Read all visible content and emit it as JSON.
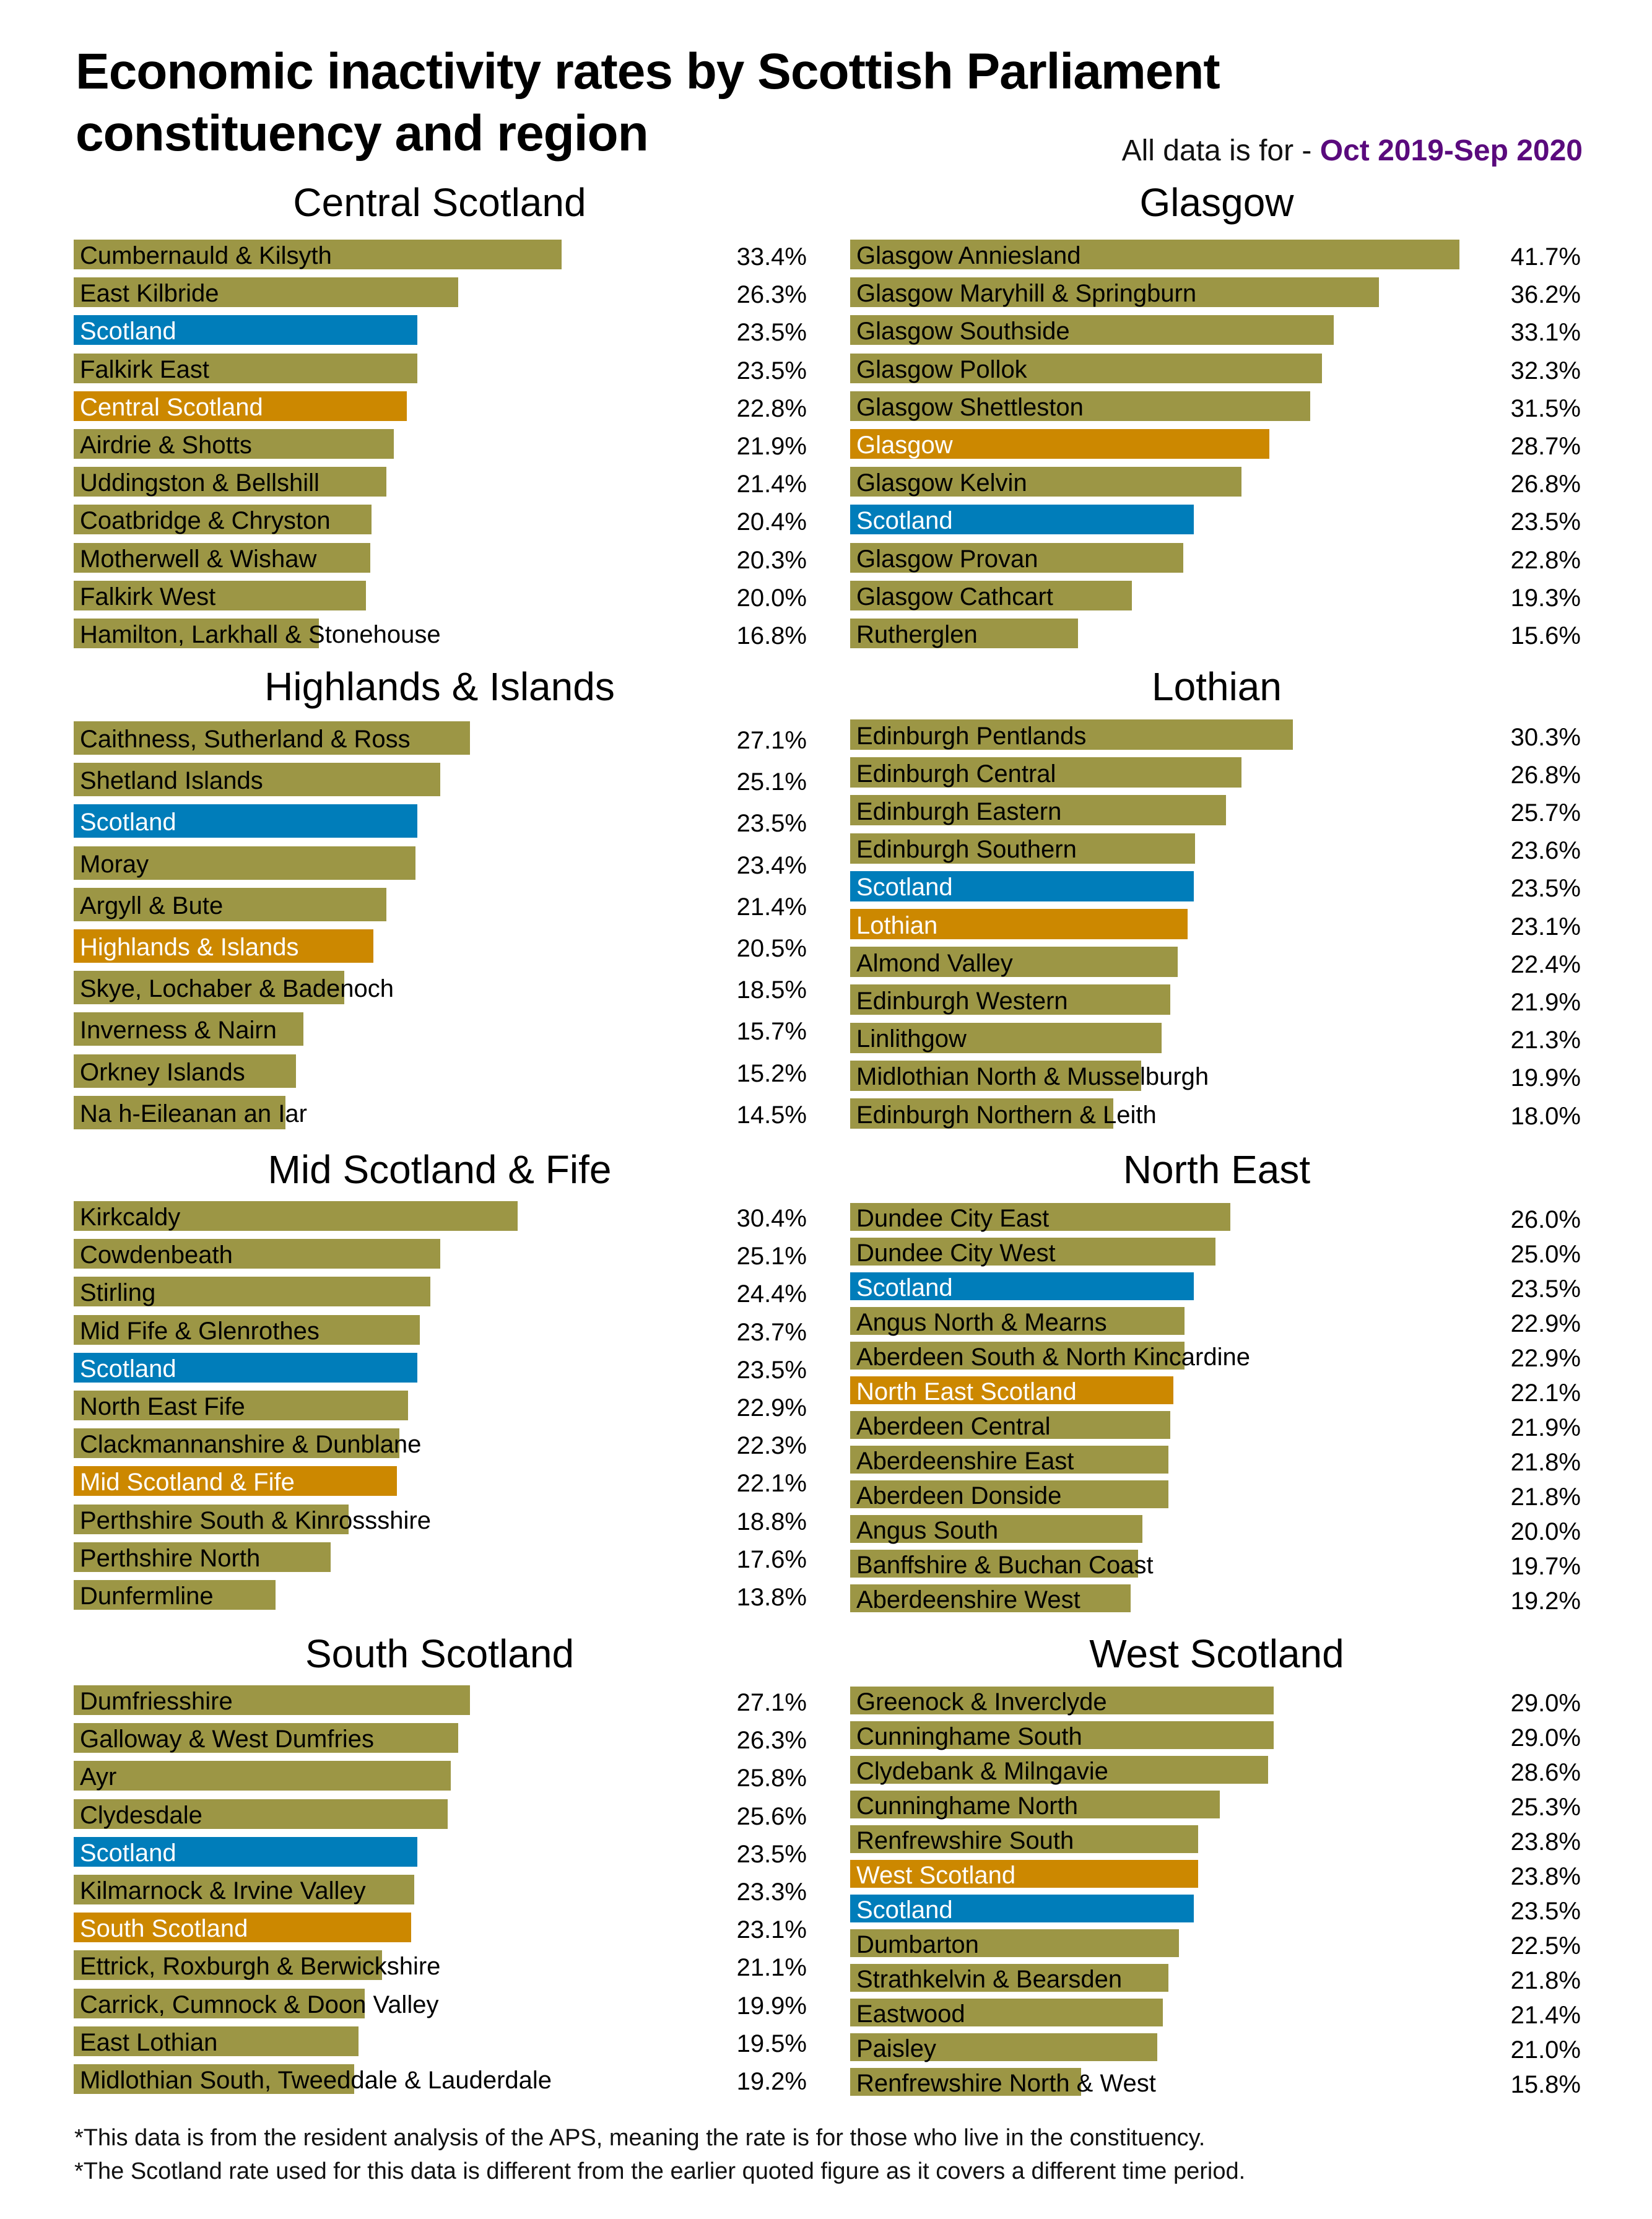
{
  "title": "Economic inactivity rates by Scottish Parliament constituency and region",
  "period": {
    "label": "All data is for - ",
    "value": "Oct 2019-Sep 2020",
    "value_color": "#5a0a7d"
  },
  "colors": {
    "constituency": "#9c9645",
    "scotland": "#007dba",
    "region": "#cc8800",
    "constituency_text": "#000000",
    "highlight_text": "#ffffff"
  },
  "footnotes": [
    "*This data is from the resident analysis of the APS, meaning the rate is for those who live in the constituency.",
    "*The Scotland rate used for this data is different from the earlier quoted figure as it covers a different time period."
  ],
  "chart_data": [
    {
      "type": "bar",
      "orientation": "horizontal",
      "title": "Central Scotland",
      "unit": "%",
      "categories": [
        "Cumbernauld & Kilsyth",
        "East Kilbride",
        "Scotland",
        "Falkirk East",
        "Central Scotland",
        "Airdrie & Shotts",
        "Uddingston & Bellshill",
        "Coatbridge & Chryston",
        "Motherwell & Wishaw",
        "Falkirk West",
        "Hamilton, Larkhall & Stonehouse"
      ],
      "values": [
        33.4,
        26.3,
        23.5,
        23.5,
        22.8,
        21.9,
        21.4,
        20.4,
        20.3,
        20.0,
        16.8
      ],
      "kinds": [
        "c",
        "c",
        "s",
        "c",
        "r",
        "c",
        "c",
        "c",
        "c",
        "c",
        "c"
      ],
      "labels": [
        "33.4%",
        "26.3%",
        "23.5%",
        "23.5%",
        "22.8%",
        "21.9%",
        "21.4%",
        "20.4%",
        "20.3%",
        "20.0%",
        "16.8%"
      ]
    },
    {
      "type": "bar",
      "orientation": "horizontal",
      "title": "Glasgow",
      "unit": "%",
      "categories": [
        "Glasgow Anniesland",
        "Glasgow Maryhill & Springburn",
        "Glasgow Southside",
        "Glasgow Pollok",
        "Glasgow Shettleston",
        "Glasgow",
        "Glasgow Kelvin",
        "Scotland",
        "Glasgow Provan",
        "Glasgow Cathcart",
        "Rutherglen"
      ],
      "values": [
        41.7,
        36.2,
        33.1,
        32.3,
        31.5,
        28.7,
        26.8,
        23.5,
        22.8,
        19.3,
        15.6
      ],
      "kinds": [
        "c",
        "c",
        "c",
        "c",
        "c",
        "r",
        "c",
        "s",
        "c",
        "c",
        "c"
      ],
      "labels": [
        "41.7%",
        "36.2%",
        "33.1%",
        "32.3%",
        "31.5%",
        "28.7%",
        "26.8%",
        "23.5%",
        "22.8%",
        "19.3%",
        "15.6%"
      ]
    },
    {
      "type": "bar",
      "orientation": "horizontal",
      "title": "Highlands & Islands",
      "unit": "%",
      "categories": [
        "Caithness, Sutherland & Ross",
        "Shetland Islands",
        "Scotland",
        "Moray",
        "Argyll & Bute",
        "Highlands & Islands",
        "Skye, Lochaber & Badenoch",
        "Inverness & Nairn",
        "Orkney Islands",
        "Na h-Eileanan an Iar"
      ],
      "values": [
        27.1,
        25.1,
        23.5,
        23.4,
        21.4,
        20.5,
        18.5,
        15.7,
        15.2,
        14.5
      ],
      "kinds": [
        "c",
        "c",
        "s",
        "c",
        "c",
        "r",
        "c",
        "c",
        "c",
        "c"
      ],
      "labels": [
        "27.1%",
        "25.1%",
        "23.5%",
        "23.4%",
        "21.4%",
        "20.5%",
        "18.5%",
        "15.7%",
        "15.2%",
        "14.5%"
      ]
    },
    {
      "type": "bar",
      "orientation": "horizontal",
      "title": "Lothian",
      "unit": "%",
      "categories": [
        "Edinburgh Pentlands",
        "Edinburgh Central",
        "Edinburgh Eastern",
        "Edinburgh Southern",
        "Scotland",
        "Lothian",
        "Almond Valley",
        "Edinburgh Western",
        "Linlithgow",
        "Midlothian North & Musselburgh",
        "Edinburgh Northern & Leith"
      ],
      "values": [
        30.3,
        26.8,
        25.7,
        23.6,
        23.5,
        23.1,
        22.4,
        21.9,
        21.3,
        19.9,
        18.0
      ],
      "kinds": [
        "c",
        "c",
        "c",
        "c",
        "s",
        "r",
        "c",
        "c",
        "c",
        "c",
        "c"
      ],
      "labels": [
        "30.3%",
        "26.8%",
        "25.7%",
        "23.6%",
        "23.5%",
        "23.1%",
        "22.4%",
        "21.9%",
        "21.3%",
        "19.9%",
        "18.0%"
      ]
    },
    {
      "type": "bar",
      "orientation": "horizontal",
      "title": "Mid Scotland & Fife",
      "unit": "%",
      "categories": [
        "Kirkcaldy",
        "Cowdenbeath",
        "Stirling",
        "Mid Fife & Glenrothes",
        "Scotland",
        "North East Fife",
        "Clackmannanshire & Dunblane",
        "Mid Scotland & Fife",
        "Perthshire South & Kinrossshire",
        "Perthshire North",
        "Dunfermline"
      ],
      "values": [
        30.4,
        25.1,
        24.4,
        23.7,
        23.5,
        22.9,
        22.3,
        22.1,
        18.8,
        17.6,
        13.8
      ],
      "kinds": [
        "c",
        "c",
        "c",
        "c",
        "s",
        "c",
        "c",
        "r",
        "c",
        "c",
        "c"
      ],
      "labels": [
        "30.4%",
        "25.1%",
        "24.4%",
        "23.7%",
        "23.5%",
        "22.9%",
        "22.3%",
        "22.1%",
        "18.8%",
        "17.6%",
        "13.8%"
      ]
    },
    {
      "type": "bar",
      "orientation": "horizontal",
      "title": "North East",
      "unit": "%",
      "categories": [
        "Dundee City East",
        "Dundee City West",
        "Scotland",
        "Angus North & Mearns",
        "Aberdeen South & North Kincardine",
        "North East Scotland",
        "Aberdeen Central",
        "Aberdeenshire East",
        "Aberdeen Donside",
        "Angus South",
        "Banffshire & Buchan Coast",
        "Aberdeenshire West"
      ],
      "values": [
        26.0,
        25.0,
        23.5,
        22.9,
        22.9,
        22.1,
        21.9,
        21.8,
        21.8,
        20.0,
        19.7,
        19.2
      ],
      "kinds": [
        "c",
        "c",
        "s",
        "c",
        "c",
        "r",
        "c",
        "c",
        "c",
        "c",
        "c",
        "c"
      ],
      "labels": [
        "26.0%",
        "25.0%",
        "23.5%",
        "22.9%",
        "22.9%",
        "22.1%",
        "21.9%",
        "21.8%",
        "21.8%",
        "20.0%",
        "19.7%",
        "19.2%"
      ]
    },
    {
      "type": "bar",
      "orientation": "horizontal",
      "title": "South Scotland",
      "unit": "%",
      "categories": [
        "Dumfriesshire",
        "Galloway & West Dumfries",
        "Ayr",
        "Clydesdale",
        "Scotland",
        "Kilmarnock & Irvine Valley",
        "South Scotland",
        "Ettrick, Roxburgh & Berwickshire",
        "Carrick, Cumnock & Doon Valley",
        "East Lothian",
        "Midlothian South, Tweeddale & Lauderdale"
      ],
      "values": [
        27.1,
        26.3,
        25.8,
        25.6,
        23.5,
        23.3,
        23.1,
        21.1,
        19.9,
        19.5,
        19.2
      ],
      "kinds": [
        "c",
        "c",
        "c",
        "c",
        "s",
        "c",
        "r",
        "c",
        "c",
        "c",
        "c"
      ],
      "labels": [
        "27.1%",
        "26.3%",
        "25.8%",
        "25.6%",
        "23.5%",
        "23.3%",
        "23.1%",
        "21.1%",
        "19.9%",
        "19.5%",
        "19.2%"
      ]
    },
    {
      "type": "bar",
      "orientation": "horizontal",
      "title": "West Scotland",
      "unit": "%",
      "categories": [
        "Greenock & Inverclyde",
        "Cunninghame South",
        "Clydebank & Milngavie",
        "Cunninghame North",
        "Renfrewshire South",
        "West Scotland",
        "Scotland",
        "Dumbarton",
        "Strathkelvin & Bearsden",
        "Eastwood",
        "Paisley",
        "Renfrewshire North & West"
      ],
      "values": [
        29.0,
        29.0,
        28.6,
        25.3,
        23.8,
        23.8,
        23.5,
        22.5,
        21.8,
        21.4,
        21.0,
        15.8
      ],
      "kinds": [
        "c",
        "c",
        "c",
        "c",
        "c",
        "r",
        "s",
        "c",
        "c",
        "c",
        "c",
        "c"
      ],
      "labels": [
        "29.0%",
        "29.0%",
        "28.6%",
        "25.3%",
        "23.8%",
        "23.8%",
        "23.5%",
        "22.5%",
        "21.8%",
        "21.4%",
        "21.0%",
        "15.8%"
      ]
    }
  ]
}
